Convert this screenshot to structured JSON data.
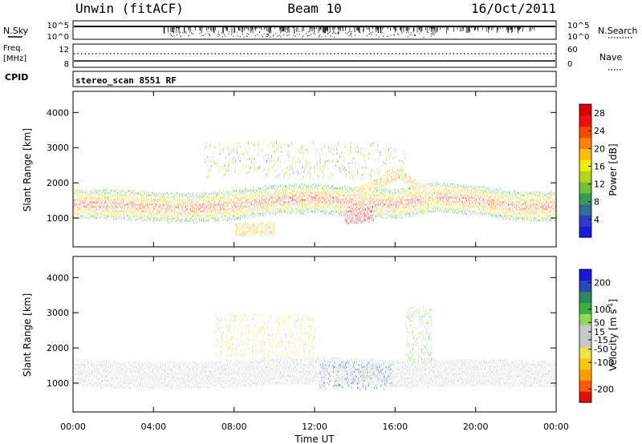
{
  "header": {
    "station": "Unwin (fitACF)",
    "beam": "Beam 10",
    "date": "16/Oct/2011"
  },
  "noise_panel": {
    "left_label": "N.Sky",
    "left_ticks": [
      "10^5",
      "10^0"
    ],
    "right_ticks": [
      "10^5",
      "10^0"
    ],
    "right_label": "N.Search"
  },
  "freq_panel": {
    "left_label_1": "Freq.",
    "left_label_2": "[MHz]",
    "left_ticks": [
      "12",
      "8"
    ],
    "right_ticks": [
      "60",
      "0"
    ],
    "right_label": "Nave"
  },
  "cpid_panel": {
    "label": "CPID",
    "program": "stereo_scan 8551 RF"
  },
  "colors": {
    "power_scale": [
      "#1a1adc",
      "#2a3fc8",
      "#2f6e9a",
      "#3a9a5a",
      "#72c03a",
      "#b4d418",
      "#f2ec0a",
      "#ffbe00",
      "#ff8200",
      "#ff4600",
      "#f01010",
      "#dc0000"
    ],
    "velocity_scale": [
      "#e01010",
      "#ff5a00",
      "#ff9c00",
      "#ffc800",
      "#f2e24a",
      "#c8c8c8",
      "#c8c8c8",
      "#8fd858",
      "#40b040",
      "#2a8a5a",
      "#2848b8",
      "#1818d8"
    ]
  },
  "chart_data": [
    {
      "type": "heatmap",
      "panel": "power",
      "xlabel": "",
      "ylabel": "Slant Range [km]",
      "x_ticks": [
        "00:00",
        "04:00",
        "08:00",
        "12:00",
        "16:00",
        "20:00",
        "00:00"
      ],
      "xlim": [
        0,
        24
      ],
      "ylim": [
        180,
        4600
      ],
      "y_ticks": [
        1000,
        2000,
        3000,
        4000
      ],
      "colorbar": {
        "label": "Power [dB]",
        "ticks": [
          4,
          8,
          12,
          16,
          20,
          24,
          28
        ],
        "range": [
          0,
          30
        ]
      },
      "features": [
        {
          "kind": "main_band",
          "x": [
            0,
            2,
            4,
            6,
            8,
            10,
            12,
            14,
            16,
            18,
            20,
            22,
            24
          ],
          "y": [
            1400,
            1380,
            1320,
            1280,
            1360,
            1520,
            1560,
            1450,
            1400,
            1600,
            1500,
            1330,
            1320
          ],
          "value": 22
        },
        {
          "kind": "hot_patch",
          "x": [
            13.5,
            14.9
          ],
          "y": [
            950,
            1350
          ],
          "value": 28
        },
        {
          "kind": "arc",
          "x": [
            14,
            16.2,
            18
          ],
          "y": [
            1700,
            2250,
            1500
          ],
          "value": 18
        },
        {
          "kind": "upper_echoes",
          "x": [
            6.5,
            16.5
          ],
          "y": [
            2200,
            3200
          ],
          "value": 12
        },
        {
          "kind": "lower_patch",
          "x": [
            8,
            10
          ],
          "y": [
            600,
            900
          ],
          "value": 18
        }
      ]
    },
    {
      "type": "heatmap",
      "panel": "velocity",
      "xlabel": "Time UT",
      "ylabel": "Slant Range [km]",
      "x_ticks": [
        "00:00",
        "04:00",
        "08:00",
        "12:00",
        "16:00",
        "20:00",
        "00:00"
      ],
      "xlim": [
        0,
        24
      ],
      "ylim": [
        180,
        4600
      ],
      "y_ticks": [
        1000,
        2000,
        3000,
        4000
      ],
      "colorbar": {
        "label": "Velocity [m s^-1]",
        "ticks": [
          200,
          100,
          50,
          15,
          -15,
          -50,
          -100,
          -200
        ],
        "range": [
          -250,
          250
        ]
      },
      "features": [
        {
          "kind": "ground_scatter",
          "x": [
            0,
            24
          ],
          "y": [
            900,
            1750
          ],
          "value": 0
        },
        {
          "kind": "negative_upper",
          "x": [
            7,
            12
          ],
          "y": [
            1800,
            3000
          ],
          "value": -60
        },
        {
          "kind": "positive_patch",
          "x": [
            12.2,
            15.8
          ],
          "y": [
            900,
            1650
          ],
          "value": 180
        },
        {
          "kind": "positive_streak",
          "x": [
            16.5,
            17.8
          ],
          "y": [
            1600,
            3200
          ],
          "value": 60
        }
      ]
    }
  ]
}
